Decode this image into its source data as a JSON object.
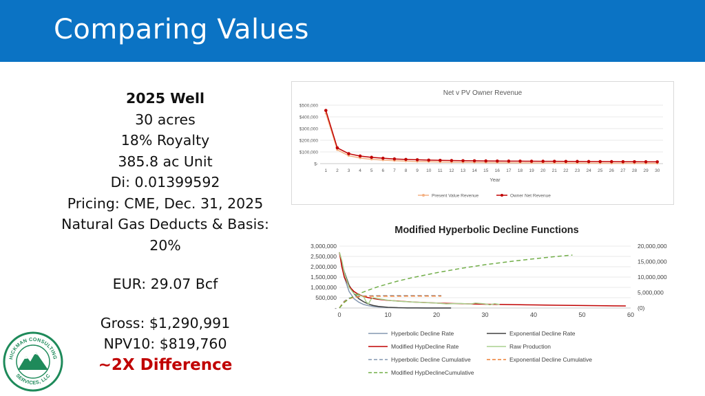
{
  "slide": {
    "title": "Comparing Values"
  },
  "info": {
    "heading": "2025 Well",
    "acres": "30 acres",
    "royalty": "18% Royalty",
    "unit": "385.8 ac Unit",
    "di": "Di: 0.01399592",
    "pricing": "Pricing: CME, Dec. 31, 2025",
    "deducts_line1": "Natural Gas Deducts & Basis:",
    "deducts_line2": "20%",
    "eur": "EUR: 29.07 Bcf",
    "gross": "Gross: $1,290,991",
    "npv": "NPV10: $819,760",
    "difference": "~2X Difference"
  },
  "logo": {
    "text_top": "HICKMAN CONSULTING",
    "text_bottom": "SERVICES, LLC"
  },
  "chart_data": [
    {
      "type": "line",
      "title": "Net v PV Owner Revenue",
      "xlabel": "Year",
      "ylabel": "",
      "categories": [
        1,
        2,
        3,
        4,
        5,
        6,
        7,
        8,
        9,
        10,
        11,
        12,
        13,
        14,
        15,
        16,
        17,
        18,
        19,
        20,
        21,
        22,
        23,
        24,
        25,
        26,
        27,
        28,
        29,
        30
      ],
      "ylim": [
        0,
        500000
      ],
      "yticks": [
        0,
        100000,
        200000,
        300000,
        400000,
        500000
      ],
      "ytick_labels": [
        "$-",
        "$100,000",
        "$200,000",
        "$300,000",
        "$400,000",
        "$500,000"
      ],
      "grid": true,
      "legend": "bottom",
      "series": [
        {
          "name": "Present Value Revenue",
          "color": "#f4b183",
          "values": [
            430000,
            118000,
            68000,
            48000,
            37000,
            30000,
            25000,
            21000,
            18000,
            16000,
            14000,
            12500,
            11000,
            10000,
            9000,
            8000,
            7200,
            6500,
            5900,
            5400,
            4900,
            4500,
            4100,
            3700,
            3400,
            3100,
            2900,
            2600,
            2400,
            2200
          ]
        },
        {
          "name": "Owner Net Revenue",
          "color": "#c00000",
          "values": [
            455000,
            135000,
            85000,
            65000,
            54000,
            46000,
            40000,
            36000,
            33000,
            30000,
            28000,
            26500,
            25000,
            24000,
            23000,
            22000,
            21500,
            21000,
            20500,
            20000,
            19500,
            19000,
            18500,
            18000,
            17500,
            17000,
            16500,
            16000,
            15800,
            15500
          ]
        }
      ]
    },
    {
      "type": "line",
      "title": "Modified Hyperbolic Decline Functions",
      "xlabel": "",
      "ylabel": "",
      "xlim": [
        0,
        60
      ],
      "xticks": [
        0,
        10,
        20,
        30,
        40,
        50,
        60
      ],
      "ylim": [
        0,
        3000000
      ],
      "yticks": [
        0,
        500000,
        1000000,
        1500000,
        2000000,
        2500000,
        3000000
      ],
      "ytick_labels": [
        "-",
        "500,000",
        "1,000,000",
        "1,500,000",
        "2,000,000",
        "2,500,000",
        "3,000,000"
      ],
      "y2lim": [
        0,
        20000000
      ],
      "y2ticks": [
        0,
        5000000,
        10000000,
        15000000,
        20000000
      ],
      "y2tick_labels": [
        "(0)",
        "5,000,000",
        "10,000,000",
        "15,000,000",
        "20,000,000"
      ],
      "grid": true,
      "legend": "bottom",
      "series": [
        {
          "name": "Hyperbolic Decline Rate",
          "color": "#8497b0",
          "dash": "",
          "axis": "left",
          "x": [
            0,
            1,
            2,
            3,
            4,
            5,
            6,
            7,
            8,
            10,
            12,
            14,
            16,
            18,
            20,
            22,
            23
          ],
          "y": [
            2700000,
            1500000,
            800000,
            450000,
            280000,
            170000,
            110000,
            75000,
            50000,
            25000,
            12000,
            6000,
            3000,
            1500,
            800,
            400,
            300
          ]
        },
        {
          "name": "Exponential Decline Rate",
          "color": "#404040",
          "dash": "",
          "axis": "left",
          "x": [
            0,
            1,
            2,
            3,
            4,
            5,
            6,
            7,
            8,
            10,
            12,
            14,
            16,
            18,
            20,
            22,
            23
          ],
          "y": [
            2700000,
            1750000,
            1100000,
            700000,
            450000,
            300000,
            190000,
            120000,
            80000,
            35000,
            15000,
            6000,
            2500,
            1000,
            400,
            150,
            80
          ]
        },
        {
          "name": "Modified HypDecline Rate",
          "color": "#c00000",
          "dash": "",
          "axis": "left",
          "x": [
            0,
            0.5,
            1,
            2,
            3,
            4,
            5,
            6,
            8,
            10,
            15,
            20,
            25,
            30,
            35,
            40,
            45,
            50,
            55,
            59
          ],
          "y": [
            2700000,
            2000000,
            1500000,
            1050000,
            800000,
            650000,
            560000,
            500000,
            420000,
            370000,
            290000,
            240000,
            210000,
            185000,
            165000,
            148000,
            133000,
            120000,
            108000,
            100000
          ]
        },
        {
          "name": "Raw Production",
          "color": "#a9d18e",
          "dash": "",
          "axis": "left",
          "x": [
            0,
            0.5,
            1,
            2,
            3,
            4,
            5,
            5.5,
            6,
            6.5,
            7,
            8,
            10,
            12,
            15,
            18,
            20,
            22,
            25,
            27,
            28,
            30,
            31,
            32,
            33
          ],
          "y": [
            2700000,
            2300000,
            1700000,
            1000000,
            700000,
            620000,
            550000,
            300000,
            200000,
            420000,
            500000,
            450000,
            380000,
            330000,
            290000,
            260000,
            240000,
            200000,
            220000,
            190000,
            240000,
            200000,
            150000,
            210000,
            170000
          ]
        },
        {
          "name": "Hyperbolic Decline Cumulative",
          "color": "#8497b0",
          "dash": "6,4",
          "axis": "right",
          "x": [
            0,
            0.5,
            1,
            2,
            3,
            4,
            5,
            6,
            8,
            10,
            15,
            21
          ],
          "y": [
            0,
            1200000,
            2200000,
            3200000,
            3600000,
            3800000,
            3900000,
            3950000,
            3980000,
            3990000,
            4000000,
            4000000
          ]
        },
        {
          "name": "Exponential Decline  Cumulative",
          "color": "#ed7d31",
          "dash": "6,4",
          "axis": "right",
          "x": [
            0,
            0.5,
            1,
            2,
            3,
            4,
            5,
            6,
            8,
            10,
            15,
            21
          ],
          "y": [
            0,
            1100000,
            2000000,
            3000000,
            3450000,
            3650000,
            3750000,
            3800000,
            3830000,
            3840000,
            3850000,
            3850000
          ]
        },
        {
          "name": "Modified HypDeclineCumulative",
          "color": "#70ad47",
          "dash": "6,4",
          "axis": "right",
          "x": [
            0,
            1,
            2,
            4,
            6,
            8,
            10,
            12,
            15,
            20,
            25,
            30,
            35,
            40,
            45,
            48
          ],
          "y": [
            0,
            1800000,
            3000000,
            4600000,
            5800000,
            6900000,
            7800000,
            8700000,
            9800000,
            11400000,
            12800000,
            14000000,
            15000000,
            15900000,
            16700000,
            17100000
          ]
        }
      ]
    }
  ]
}
